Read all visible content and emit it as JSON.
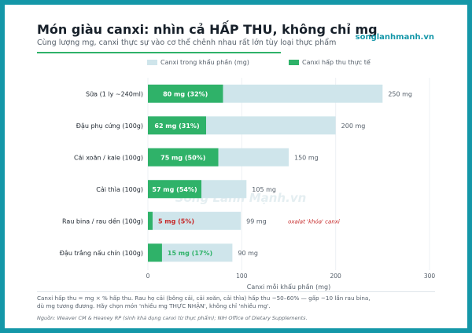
{
  "header": {
    "title": "Món giàu canxi: nhìn cả HẤP THU, không chỉ mg",
    "subtitle": "Cùng lượng mg, canxi thực sự vào cơ thể chênh nhau rất lớn tùy loại thực phẩm",
    "brand": "songlanhmanh.vn"
  },
  "watermark": "Sống Lành Mạnh.vn",
  "colors": {
    "absorbed": "#2fb269",
    "total": "#cfe5eb",
    "warning": "#c62828",
    "accent": "#1597a9"
  },
  "chart_data": {
    "type": "bar",
    "orientation": "horizontal",
    "categories": [
      "Sữa (1 ly ~240ml)",
      "Đậu phụ cứng (100g)",
      "Cải xoăn / kale (100g)",
      "Cải thìa (100g)",
      "Rau bina / rau dền (100g)",
      "Đậu trắng nấu chín (100g)"
    ],
    "series": [
      {
        "name": "Canxi trong khẩu phần (mg)",
        "values": [
          250,
          200,
          150,
          105,
          99,
          90
        ]
      },
      {
        "name": "Canxi hấp thu thực tế",
        "values": [
          80,
          62,
          75,
          57,
          5,
          15
        ]
      }
    ],
    "total_labels": [
      "250 mg",
      "200 mg",
      "150 mg",
      "105 mg",
      "99 mg",
      "90 mg"
    ],
    "absorbed_labels": [
      "80 mg (32%)",
      "62 mg (31%)",
      "75 mg (50%)",
      "57 mg (54%)",
      "5 mg (5%)",
      "15 mg (17%)"
    ],
    "annotation": {
      "category_index": 4,
      "text": "oxalat 'khóa' canxi"
    },
    "xlabel": "Canxi mỗi khẩu phần (mg)",
    "xlim": [
      0,
      300
    ],
    "xticks": [
      0,
      100,
      200,
      300
    ],
    "grid": true,
    "legend": "top-center"
  },
  "footer": {
    "line1": "Canxi hấp thu = mg × % hấp thu. Rau họ cải (bông cải, cải xoăn, cải thìa) hấp thu ~50–60% — gấp ~10 lần rau bina,",
    "line2": "dù mg tương đương. Hãy chọn món 'nhiều mg THỰC NHẬN', không chỉ 'nhiều mg'.",
    "source": "Nguồn: Weaver CM & Heaney RP (sinh khả dụng canxi từ thực phẩm); NIH Office of Dietary Supplements."
  }
}
